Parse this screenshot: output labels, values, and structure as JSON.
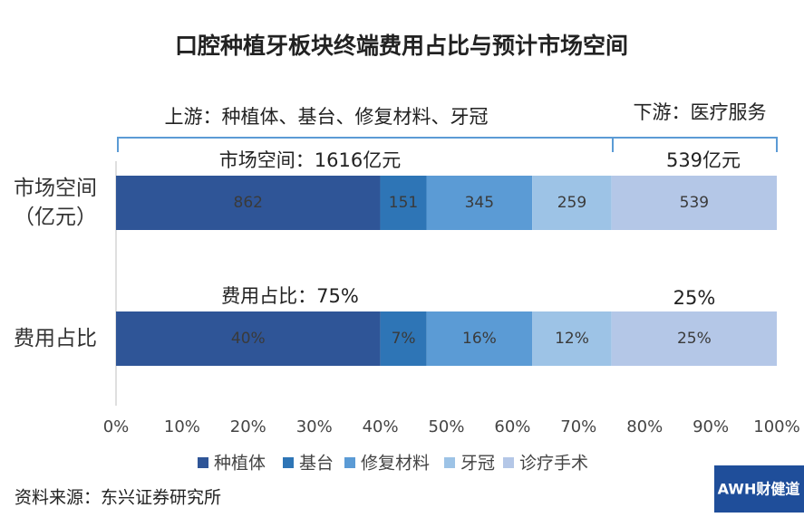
{
  "chart_data": {
    "type": "stacked_bar_horizontal_100",
    "title": "口腔种植牙板块终端费用占比与预计市场空间",
    "categories": [
      "市场空间（亿元）",
      "费用占比"
    ],
    "series": [
      {
        "name": "种植体",
        "color": "#2f5597",
        "values": [
          862,
          40
        ],
        "value_labels": [
          "862",
          "40%"
        ]
      },
      {
        "name": "基台",
        "color": "#2e75b6",
        "values": [
          151,
          7
        ],
        "value_labels": [
          "151",
          "7%"
        ]
      },
      {
        "name": "修复材料",
        "color": "#5b9bd5",
        "values": [
          345,
          16
        ],
        "value_labels": [
          "345",
          "16%"
        ]
      },
      {
        "name": "牙冠",
        "color": "#9dc3e6",
        "values": [
          259,
          12
        ],
        "value_labels": [
          "259",
          "12%"
        ]
      },
      {
        "name": "诊疗手术",
        "color": "#b4c7e7",
        "values": [
          539,
          25
        ],
        "value_labels": [
          "539",
          "25%"
        ]
      }
    ],
    "xlim": [
      0,
      100
    ],
    "xticks": [
      {
        "value": 0,
        "label": "0%"
      },
      {
        "value": 10,
        "label": "10%"
      },
      {
        "value": 20,
        "label": "20%"
      },
      {
        "value": 30,
        "label": "30%"
      },
      {
        "value": 40,
        "label": "40%"
      },
      {
        "value": 50,
        "label": "50%"
      },
      {
        "value": 60,
        "label": "60%"
      },
      {
        "value": 70,
        "label": "70%"
      },
      {
        "value": 80,
        "label": "80%"
      },
      {
        "value": 90,
        "label": "90%"
      },
      {
        "value": 100,
        "label": "100%"
      }
    ],
    "legend": "bottom",
    "annotations": {
      "upstream": "上游：种植体、基台、修复材料、牙冠",
      "downstream": "下游：医疗服务",
      "market_total": "市场空间：1616亿元",
      "market_downstream": "539亿元",
      "share_total": "费用占比：75%",
      "share_downstream": "25%"
    },
    "source": "资料来源：东兴证券研究所",
    "watermark": "AWH财健道"
  }
}
